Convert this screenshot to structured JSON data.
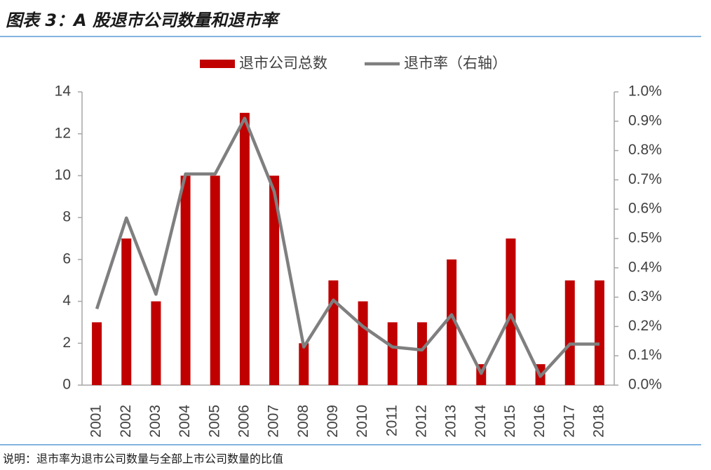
{
  "chart_data": {
    "type": "bar",
    "title": "图表 3：A 股退市公司数量和退市率",
    "note": "说明：退市率为退市公司数量与全部上市公司数量的比值",
    "categories": [
      "2001",
      "2002",
      "2003",
      "2004",
      "2005",
      "2006",
      "2007",
      "2008",
      "2009",
      "2010",
      "2011",
      "2012",
      "2013",
      "2014",
      "2015",
      "2016",
      "2017",
      "2018"
    ],
    "series": [
      {
        "name": "退市公司总数",
        "type": "bar",
        "color": "#c00000",
        "values": [
          3,
          7,
          4,
          10,
          10,
          13,
          10,
          2,
          5,
          4,
          3,
          3,
          6,
          1,
          7,
          1,
          5,
          5
        ]
      },
      {
        "name": "退市率（右轴）",
        "type": "line",
        "axis": "y2",
        "color": "#7f7f7f",
        "values": [
          0.26,
          0.57,
          0.31,
          0.72,
          0.72,
          0.91,
          0.66,
          0.13,
          0.29,
          0.2,
          0.13,
          0.12,
          0.24,
          0.04,
          0.24,
          0.03,
          0.14,
          0.14
        ]
      }
    ],
    "ylim": [
      0,
      14
    ],
    "yticks": [
      0,
      2,
      4,
      6,
      8,
      10,
      12,
      14
    ],
    "y2lim": [
      0,
      1
    ],
    "y2ticks": [
      {
        "value": 0,
        "label": "0.0%"
      },
      {
        "value": 0.1,
        "label": "0.1%"
      },
      {
        "value": 0.2,
        "label": "0.2%"
      },
      {
        "value": 0.3,
        "label": "0.3%"
      },
      {
        "value": 0.4,
        "label": "0.4%"
      },
      {
        "value": 0.5,
        "label": "0.5%"
      },
      {
        "value": 0.6,
        "label": "0.6%"
      },
      {
        "value": 0.7,
        "label": "0.7%"
      },
      {
        "value": 0.8,
        "label": "0.8%"
      },
      {
        "value": 0.9,
        "label": "0.9%"
      },
      {
        "value": 1,
        "label": "1.0%"
      }
    ],
    "grid": false,
    "legend": "top"
  }
}
